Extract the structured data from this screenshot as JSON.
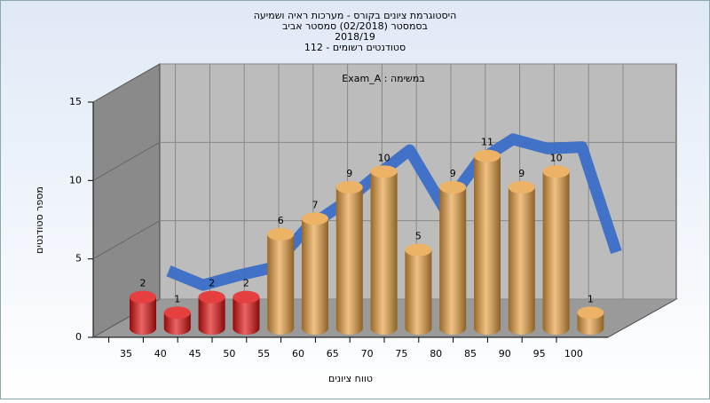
{
  "chart_data": {
    "type": "bar",
    "title": [
      "היסטוגרמת ציונים בקורס - מערכות ראיה ושמיעה",
      "בסמסטר  (02/2018)  סמסטר אביב",
      "2018/19",
      "סטודנטים רשומים - 112"
    ],
    "annotation": "Exam_A : במשימה",
    "x_label": "טווח ציונים",
    "y_label": "מספר סטודנטים",
    "categories": [
      "35",
      "40",
      "45",
      "50",
      "55",
      "60",
      "65",
      "70",
      "75",
      "80",
      "85",
      "90",
      "95",
      "100"
    ],
    "series": [
      {
        "type": "bar",
        "values": [
          2,
          1,
          2,
          2,
          6,
          7,
          9,
          10,
          5,
          9,
          11,
          9,
          10,
          1
        ],
        "colors": [
          "#e01010",
          "#e01010",
          "#e01010",
          "#e01010",
          "#e8a040",
          "#e8a040",
          "#e8a040",
          "#e8a040",
          "#e8a040",
          "#e8a040",
          "#e8a040",
          "#e8a040",
          "#e8a040",
          "#e8a040"
        ]
      },
      {
        "type": "line",
        "color": "#3a6ec8",
        "values": [
          1.8,
          0.9,
          1.5,
          2,
          4.5,
          6,
          7.8,
          9.5,
          5.8,
          8.8,
          10.2,
          9.6,
          9.7,
          3
        ]
      }
    ],
    "ylim": [
      0,
      15
    ],
    "yticks": [
      0,
      5,
      10,
      15
    ],
    "grid": true
  }
}
